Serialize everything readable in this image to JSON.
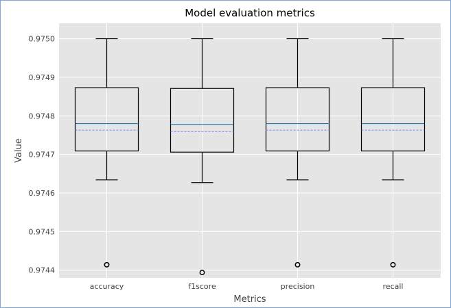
{
  "chart_data": {
    "type": "box",
    "title": "Model evaluation metrics",
    "xlabel": "Metrics",
    "ylabel": "Value",
    "ylim": [
      0.97438,
      0.97504
    ],
    "yticks": [
      "0.9744",
      "0.9745",
      "0.9746",
      "0.9747",
      "0.9748",
      "0.9749",
      "0.9750"
    ],
    "ytick_values": [
      0.9744,
      0.9745,
      0.9746,
      0.9747,
      0.9748,
      0.9749,
      0.975
    ],
    "grid": true,
    "categories": [
      "accuracy",
      "f1score",
      "precision",
      "recall"
    ],
    "boxes": [
      {
        "name": "accuracy",
        "whisker_low": 0.974634,
        "q1": 0.974709,
        "median": 0.97478,
        "mean": 0.974763,
        "q3": 0.974873,
        "whisker_high": 0.975,
        "outliers": [
          0.974414
        ]
      },
      {
        "name": "f1score",
        "whisker_low": 0.974627,
        "q1": 0.974706,
        "median": 0.974778,
        "mean": 0.974759,
        "q3": 0.974871,
        "whisker_high": 0.975,
        "outliers": [
          0.974394
        ]
      },
      {
        "name": "precision",
        "whisker_low": 0.974634,
        "q1": 0.974709,
        "median": 0.97478,
        "mean": 0.974763,
        "q3": 0.974873,
        "whisker_high": 0.975,
        "outliers": [
          0.974414
        ]
      },
      {
        "name": "recall",
        "whisker_low": 0.974634,
        "q1": 0.974709,
        "median": 0.97478,
        "mean": 0.974763,
        "q3": 0.974873,
        "whisker_high": 0.975,
        "outliers": [
          0.974414
        ]
      }
    ],
    "colors": {
      "plot_bg": "#e5e5e5",
      "grid": "#ffffff",
      "box": "#000000",
      "median": "#1f77b4",
      "mean": "#7f7fff"
    }
  }
}
